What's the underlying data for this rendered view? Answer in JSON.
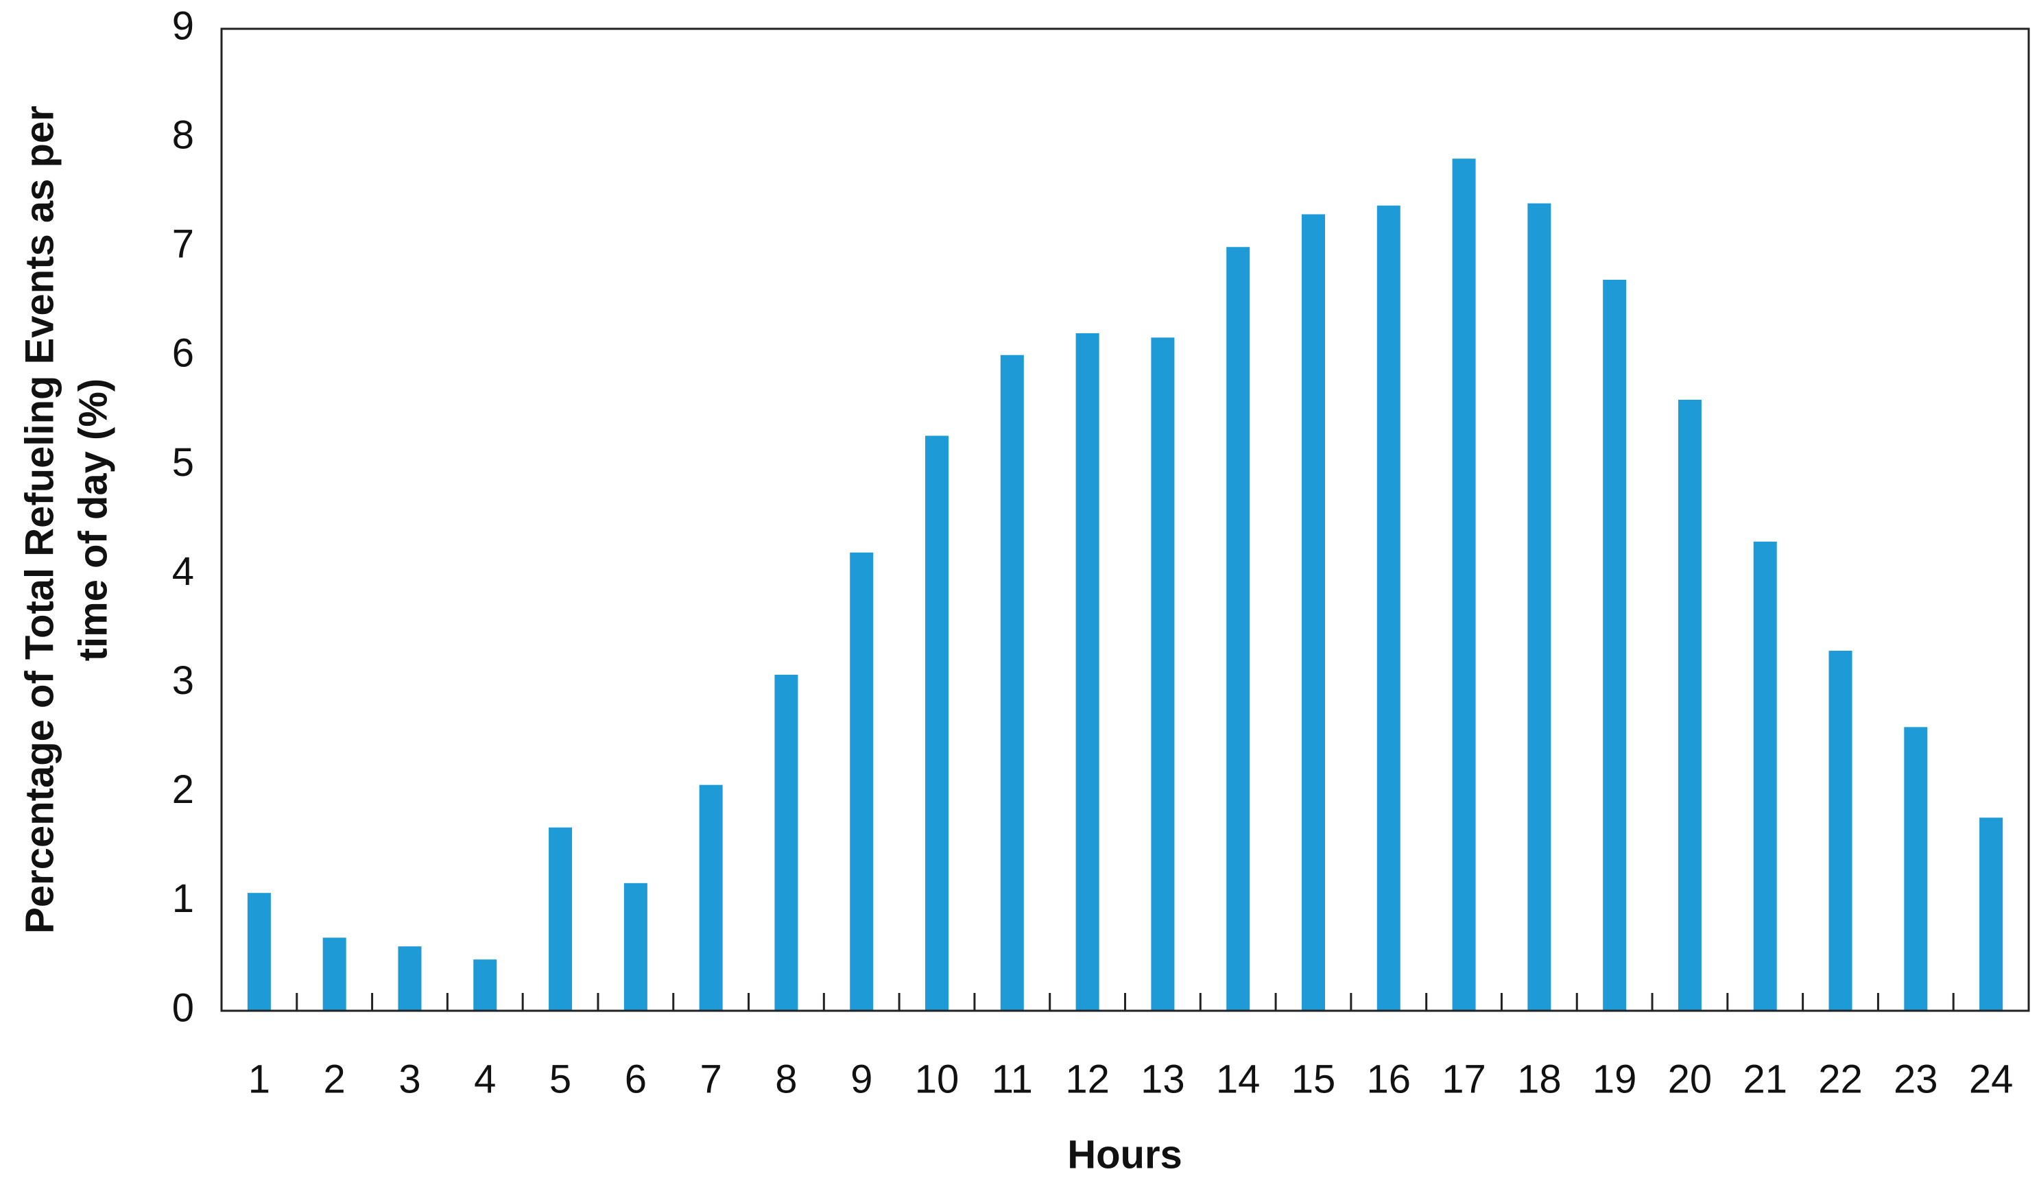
{
  "chart_data": {
    "type": "bar",
    "xlabel": "Hours",
    "ylabel": [
      "Percentage of Total Refueling Events as per",
      "time of day (%)"
    ],
    "categories": [
      "1",
      "2",
      "3",
      "4",
      "5",
      "6",
      "7",
      "8",
      "9",
      "10",
      "11",
      "12",
      "13",
      "14",
      "15",
      "16",
      "17",
      "18",
      "19",
      "20",
      "21",
      "22",
      "23",
      "24"
    ],
    "values": [
      1.08,
      0.67,
      0.59,
      0.47,
      1.68,
      1.17,
      2.07,
      3.08,
      4.2,
      5.27,
      6.01,
      6.21,
      6.17,
      7.0,
      7.3,
      7.38,
      7.81,
      7.4,
      6.7,
      5.6,
      4.3,
      3.3,
      2.6,
      1.77
    ],
    "color": "#1e9ad6",
    "ylim": [
      0,
      9
    ],
    "yticks": [
      0,
      1,
      2,
      3,
      4,
      5,
      6,
      7,
      8,
      9
    ],
    "grid": false
  }
}
